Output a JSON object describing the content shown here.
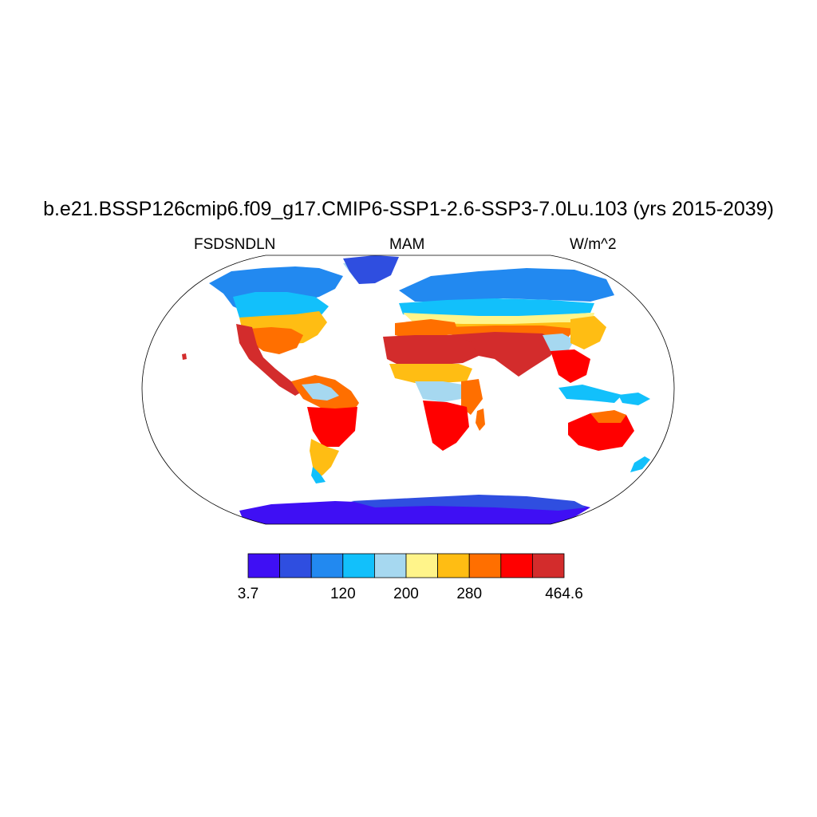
{
  "title": "b.e21.BSSP126cmip6.f09_g17.CMIP6-SSP1-2.6-SSP3-7.0Lu.103 (yrs 2015-2039)",
  "left_string": "FSDSNDLN",
  "center_string": "MAM",
  "right_string": "W/m^2",
  "colorbar": {
    "colors": [
      "#3f0ff4",
      "#2f4ee0",
      "#2289f0",
      "#12c0fb",
      "#a6d8f0",
      "#fff48a",
      "#ffbd13",
      "#ff6f00",
      "#ff0000",
      "#d32c2c"
    ],
    "labels": [
      "3.7",
      "120",
      "200",
      "280",
      "464.6"
    ],
    "label_box_index": [
      0,
      3,
      5,
      7,
      10
    ]
  },
  "map": {
    "projection": "robinson",
    "variable": "surface downwelling shortwave radiation (land only)",
    "field_classes": {
      "antarctica": 0,
      "greenland_ice": 1,
      "arctic_coast": 2,
      "boreal": 3,
      "high_mid_lat": 4,
      "mid_lat": 5,
      "warm": 6,
      "hot": 7,
      "very_hot": 8,
      "desert": 9
    }
  }
}
